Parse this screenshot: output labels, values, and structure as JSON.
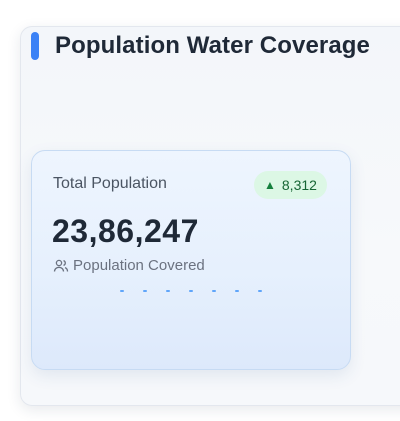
{
  "header": {
    "title": "Population Water Coverage"
  },
  "card": {
    "label": "Total Population",
    "value": "23,86,247",
    "subtitle": "Population Covered",
    "subtitle_icon": "users-icon",
    "badge": {
      "arrow": "▲",
      "value": "8,312"
    }
  },
  "colors": {
    "accent": "#3b82f6",
    "badge_bg": "#dcf7e5",
    "badge_text": "#166534"
  }
}
